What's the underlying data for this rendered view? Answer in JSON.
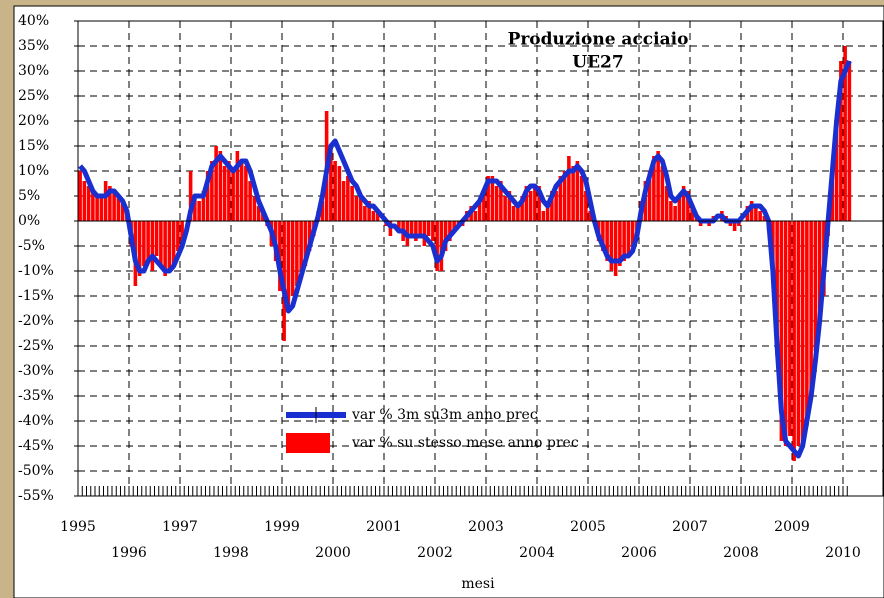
{
  "chart_data": {
    "type": "bar_line",
    "title": "Produzione acciaio",
    "subtitle": "UE27",
    "x_label": "mesi",
    "categories": [
      "1995",
      null,
      null,
      null,
      null,
      null,
      null,
      null,
      null,
      null,
      null,
      null,
      "1996",
      null,
      null,
      null,
      null,
      null,
      null,
      null,
      null,
      null,
      null,
      null,
      "1997",
      null,
      null,
      null,
      null,
      null,
      null,
      null,
      null,
      null,
      null,
      null,
      "1998",
      null,
      null,
      null,
      null,
      null,
      null,
      null,
      null,
      null,
      null,
      null,
      "1999",
      null,
      null,
      null,
      null,
      null,
      null,
      null,
      null,
      null,
      null,
      null,
      "2000",
      null,
      null,
      null,
      null,
      null,
      null,
      null,
      null,
      null,
      null,
      null,
      "2001",
      null,
      null,
      null,
      null,
      null,
      null,
      null,
      null,
      null,
      null,
      null,
      "2002",
      null,
      null,
      null,
      null,
      null,
      null,
      null,
      null,
      null,
      null,
      null,
      "2003",
      null,
      null,
      null,
      null,
      null,
      null,
      null,
      null,
      null,
      null,
      null,
      "2004",
      null,
      null,
      null,
      null,
      null,
      null,
      null,
      null,
      null,
      null,
      null,
      "2005",
      null,
      null,
      null,
      null,
      null,
      null,
      null,
      null,
      null,
      null,
      null,
      "2006",
      null,
      null,
      null,
      null,
      null,
      null,
      null,
      null,
      null,
      null,
      null,
      "2007",
      null,
      null,
      null,
      null,
      null,
      null,
      null,
      null,
      null,
      null,
      null,
      "2008",
      null,
      null,
      null,
      null,
      null,
      null,
      null,
      null,
      null,
      null,
      null,
      "2009",
      null,
      null,
      null,
      null,
      null,
      null,
      null,
      null,
      null,
      null,
      null,
      "2010",
      null
    ],
    "series": [
      {
        "name": "var % 3m su3m  anno prec",
        "kind": "line",
        "color": "#1a2fd0",
        "values": [
          11,
          10,
          8,
          6,
          5,
          5,
          5,
          6,
          6,
          5,
          4,
          2,
          -3,
          -8,
          -10,
          -10,
          -8,
          -7,
          -8,
          -9,
          -10,
          -10,
          -9,
          -7,
          -5,
          -2,
          2,
          5,
          5,
          5,
          8,
          11,
          12,
          13,
          12,
          11,
          10,
          11,
          12,
          12,
          10,
          7,
          4,
          2,
          0,
          -2,
          -5,
          -10,
          -14,
          -18,
          -17,
          -14,
          -11,
          -8,
          -5,
          -2,
          1,
          5,
          10,
          15,
          16,
          14,
          12,
          10,
          8,
          7,
          5,
          4,
          3,
          3,
          2,
          1,
          0,
          -1,
          -1,
          -2,
          -2,
          -3,
          -3,
          -3,
          -3,
          -3,
          -4,
          -5,
          -8,
          -7,
          -4,
          -3,
          -2,
          -1,
          0,
          1,
          2,
          3,
          4,
          6,
          8,
          8,
          8,
          7,
          6,
          5,
          4,
          3,
          4,
          6,
          7,
          7,
          6,
          4,
          3,
          5,
          7,
          8,
          9,
          10,
          10,
          11,
          10,
          8,
          4,
          0,
          -3,
          -5,
          -7,
          -8,
          -8,
          -8,
          -7,
          -7,
          -6,
          -3,
          2,
          6,
          9,
          12,
          13,
          12,
          9,
          5,
          4,
          5,
          6,
          5,
          3,
          1,
          0,
          0,
          0,
          0,
          1,
          1,
          0,
          0,
          0,
          0,
          1,
          2,
          3,
          3,
          3,
          2,
          0,
          -10,
          -25,
          -38,
          -44,
          -45,
          -46,
          -47,
          -45,
          -40,
          -35,
          -28,
          -20,
          -10,
          0,
          10,
          20,
          28,
          30,
          32
        ]
      },
      {
        "name": "var %  su stesso mese  anno prec",
        "kind": "bar",
        "color": "#ff0000",
        "values": [
          10,
          8,
          7,
          6,
          5,
          5,
          8,
          7,
          6,
          5,
          4,
          2,
          -5,
          -13,
          -11,
          -9,
          -8,
          -10,
          -7,
          -9,
          -11,
          -10,
          -9,
          -6,
          -4,
          0,
          10,
          5,
          4,
          6,
          10,
          12,
          15,
          14,
          11,
          12,
          10,
          14,
          12,
          11,
          8,
          5,
          3,
          2,
          -1,
          -5,
          -8,
          -14,
          -24,
          -17,
          -15,
          -13,
          -10,
          -9,
          -6,
          -3,
          2,
          4,
          22,
          14,
          12,
          11,
          8,
          9,
          7,
          5,
          5,
          3,
          4,
          2,
          2,
          0,
          -1,
          -3,
          0,
          -2,
          -4,
          -5,
          -3,
          -4,
          -3,
          -5,
          -3,
          -4,
          -10,
          -10,
          -6,
          -4,
          -2,
          -1,
          -1,
          2,
          3,
          2,
          4,
          6,
          9,
          9,
          7,
          8,
          5,
          6,
          3,
          3,
          5,
          7,
          6,
          7,
          7,
          2,
          4,
          6,
          6,
          9,
          10,
          13,
          11,
          12,
          9,
          6,
          2,
          0,
          -4,
          -6,
          -8,
          -10,
          -11,
          -9,
          -8,
          -7,
          -5,
          -2,
          4,
          8,
          10,
          13,
          14,
          11,
          7,
          4,
          3,
          5,
          7,
          6,
          3,
          1,
          -1,
          0,
          -1,
          1,
          0,
          2,
          1,
          -1,
          -2,
          -1,
          0,
          3,
          4,
          3,
          2,
          1,
          -2,
          -10,
          -27,
          -44,
          -45,
          -43,
          -48,
          -45,
          -44,
          -41,
          -35,
          -26,
          -21,
          -15,
          -3,
          10,
          20,
          32,
          35,
          32
        ]
      }
    ],
    "ylim": [
      -55,
      40
    ],
    "yticks": [
      {
        "value": 40,
        "label": "40%"
      },
      {
        "value": 35,
        "label": "35%"
      },
      {
        "value": 30,
        "label": "30%"
      },
      {
        "value": 25,
        "label": "25%"
      },
      {
        "value": 20,
        "label": "20%"
      },
      {
        "value": 15,
        "label": "15%"
      },
      {
        "value": 10,
        "label": "10%"
      },
      {
        "value": 5,
        "label": "5%"
      },
      {
        "value": 0,
        "label": "0%"
      },
      {
        "value": -5,
        "label": "-5%"
      },
      {
        "value": -10,
        "label": "-10%"
      },
      {
        "value": -15,
        "label": "-15%"
      },
      {
        "value": -20,
        "label": "-20%"
      },
      {
        "value": -25,
        "label": "-25%"
      },
      {
        "value": -30,
        "label": "-30%"
      },
      {
        "value": -35,
        "label": "-35%"
      },
      {
        "value": -40,
        "label": "-40%"
      },
      {
        "value": -45,
        "label": "-45%"
      },
      {
        "value": -50,
        "label": "-50%"
      },
      {
        "value": -55,
        "label": "-55%"
      }
    ],
    "grid": true
  }
}
